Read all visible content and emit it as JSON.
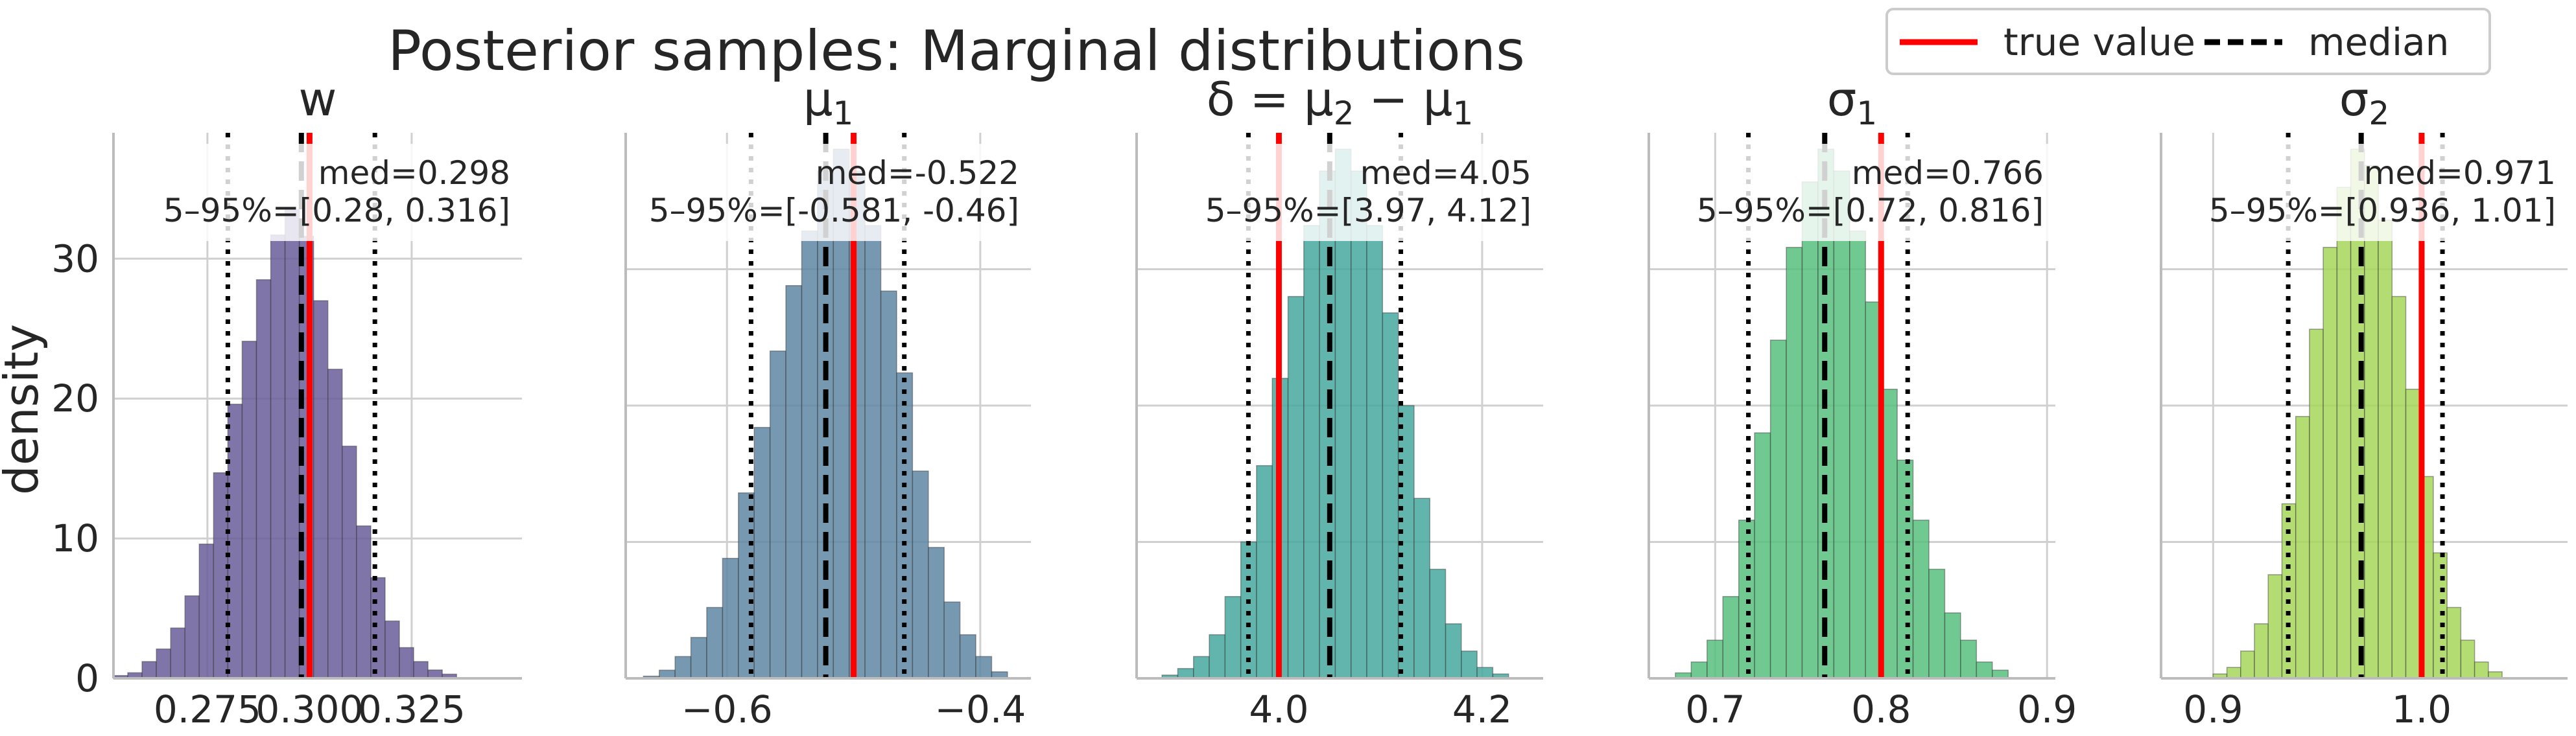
{
  "figure": {
    "title": "Posterior samples: Marginal distributions",
    "ylabel": "density"
  },
  "legend": {
    "items": [
      {
        "label": "true value",
        "color": "#ff0000",
        "style": "solid"
      },
      {
        "label": "median",
        "color": "#000000",
        "style": "dashed"
      }
    ],
    "placement": "top-right"
  },
  "chart_data": [
    {
      "type": "histogram",
      "title": "w",
      "xlim": [
        0.252,
        0.352
      ],
      "ylim": [
        0,
        39
      ],
      "xticks": [
        0.275,
        0.3,
        0.325
      ],
      "xtick_labels": [
        "0.275",
        "0.300",
        "0.325"
      ],
      "yticks": [
        0,
        10,
        20,
        30
      ],
      "ytick_labels": [
        "0",
        "10",
        "20",
        "30"
      ],
      "bin_start": 0.252,
      "bin_width": 0.0035,
      "counts": [
        0.2,
        0.4,
        1.2,
        2.1,
        3.6,
        5.9,
        9.6,
        14.7,
        19.6,
        24.1,
        28.5,
        31.7,
        33.5,
        31.6,
        27.0,
        22.1,
        16.6,
        10.9,
        7.2,
        4.1,
        2.2,
        1.2,
        0.6,
        0.3
      ],
      "true_value": 0.3,
      "median": 0.298,
      "q05": 0.28,
      "q95": 0.316,
      "annotation": [
        "med=0.298",
        "5–95%=[0.28, 0.316]"
      ],
      "color": "#6a5d9a"
    },
    {
      "type": "histogram",
      "title": "μ1",
      "xlim": [
        -0.68,
        -0.36
      ],
      "ylim": [
        0,
        1.0
      ],
      "xticks": [
        -0.6,
        -0.4
      ],
      "xtick_labels": [
        "−0.6",
        "−0.4"
      ],
      "yticks": [],
      "ytick_labels": [],
      "bin_start": -0.666,
      "bin_width": 0.0125,
      "counts": [
        0.004,
        0.015,
        0.04,
        0.075,
        0.13,
        0.22,
        0.34,
        0.46,
        0.6,
        0.72,
        0.82,
        0.93,
        0.97,
        0.93,
        0.83,
        0.71,
        0.56,
        0.38,
        0.24,
        0.14,
        0.08,
        0.04,
        0.012
      ],
      "true_value": -0.5,
      "median": -0.522,
      "q05": -0.581,
      "q95": -0.46,
      "annotation": [
        "med=-0.522",
        "5–95%=[-0.581, -0.46]"
      ],
      "color": "#5f86a3"
    },
    {
      "type": "histogram",
      "title": "δ = μ2 − μ1",
      "xlim": [
        3.86,
        4.26
      ],
      "ylim": [
        0,
        1.0
      ],
      "xticks": [
        4.0,
        4.2
      ],
      "xtick_labels": [
        "4.0",
        "4.2"
      ],
      "yticks": [],
      "ytick_labels": [],
      "bin_start": 3.885,
      "bin_width": 0.0155,
      "counts": [
        0.006,
        0.018,
        0.04,
        0.08,
        0.15,
        0.25,
        0.39,
        0.55,
        0.7,
        0.83,
        0.93,
        0.97,
        0.93,
        0.83,
        0.67,
        0.5,
        0.33,
        0.2,
        0.1,
        0.05,
        0.02,
        0.008
      ],
      "true_value": 4.0,
      "median": 4.05,
      "q05": 3.97,
      "q95": 4.12,
      "annotation": [
        "med=4.05",
        "5–95%=[3.97, 4.12]"
      ],
      "color": "#45a89e"
    },
    {
      "type": "histogram",
      "title": "σ1",
      "xlim": [
        0.66,
        0.905
      ],
      "ylim": [
        0,
        1.0
      ],
      "xticks": [
        0.7,
        0.8,
        0.9
      ],
      "xtick_labels": [
        "0.7",
        "0.8",
        "0.9"
      ],
      "yticks": [],
      "ytick_labels": [],
      "bin_start": 0.676,
      "bin_width": 0.00955,
      "counts": [
        0.01,
        0.03,
        0.07,
        0.15,
        0.29,
        0.45,
        0.62,
        0.79,
        0.91,
        0.97,
        0.93,
        0.82,
        0.69,
        0.53,
        0.4,
        0.29,
        0.2,
        0.12,
        0.07,
        0.03,
        0.015
      ],
      "true_value": 0.8,
      "median": 0.766,
      "q05": 0.72,
      "q95": 0.816,
      "annotation": [
        "med=0.766",
        "5–95%=[0.72, 0.816]"
      ],
      "color": "#57c07d"
    },
    {
      "type": "histogram",
      "title": "σ2",
      "xlim": [
        0.875,
        1.07
      ],
      "ylim": [
        0,
        1.0
      ],
      "xticks": [
        0.9,
        1.0
      ],
      "xtick_labels": [
        "0.9",
        "1.0"
      ],
      "yticks": [],
      "ytick_labels": [],
      "bin_start": 0.9,
      "bin_width": 0.0066,
      "counts": [
        0.008,
        0.02,
        0.05,
        0.1,
        0.19,
        0.32,
        0.48,
        0.64,
        0.79,
        0.9,
        0.97,
        0.94,
        0.84,
        0.7,
        0.53,
        0.37,
        0.23,
        0.13,
        0.07,
        0.03,
        0.012
      ],
      "true_value": 1.0,
      "median": 0.971,
      "q05": 0.936,
      "q95": 1.01,
      "annotation": [
        "med=0.971",
        "5–95%=[0.936, 1.01]"
      ],
      "color": "#a6d65a"
    }
  ]
}
